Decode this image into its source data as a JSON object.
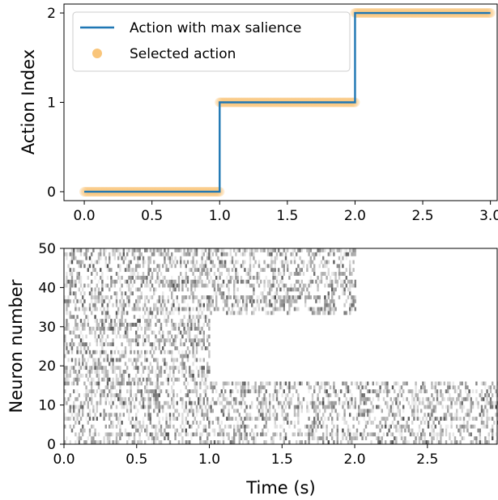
{
  "chart_data": [
    {
      "type": "line",
      "ylabel": "Action Index",
      "xlim": [
        -0.15,
        3.05
      ],
      "ylim": [
        -0.1,
        2.1
      ],
      "xticks": [
        "0.0",
        "0.5",
        "1.0",
        "1.5",
        "2.0",
        "2.5",
        "3.0"
      ],
      "xtick_values": [
        0,
        0.5,
        1,
        1.5,
        2,
        2.5,
        3
      ],
      "yticks": [
        "0",
        "1",
        "2"
      ],
      "ytick_values": [
        0,
        1,
        2
      ],
      "legend_position": "top-left",
      "series": [
        {
          "name": "Action with max salience",
          "kind": "step-line",
          "color": "#1f77b4",
          "x": [
            0,
            1,
            1,
            2,
            2,
            3
          ],
          "y": [
            0,
            0,
            1,
            1,
            2,
            2
          ]
        },
        {
          "name": "Selected action",
          "kind": "scatter",
          "color": "#f9c57a",
          "segments": [
            {
              "x_start": 0.0,
              "x_end": 1.0,
              "y": 0
            },
            {
              "x_start": 1.0,
              "x_end": 2.0,
              "y": 1
            },
            {
              "x_start": 2.0,
              "x_end": 3.0,
              "y": 2
            }
          ]
        }
      ]
    },
    {
      "type": "heatmap",
      "subtype": "raster",
      "xlabel": "Time (s)",
      "ylabel": "Neuron number",
      "xlim": [
        0,
        2.98
      ],
      "ylim": [
        0,
        50
      ],
      "xticks": [
        "0.0",
        "0.5",
        "1.0",
        "1.5",
        "2.0",
        "2.5"
      ],
      "xtick_values": [
        0,
        0.5,
        1,
        1.5,
        2,
        2.5
      ],
      "yticks": [
        "0",
        "10",
        "20",
        "30",
        "40",
        "50"
      ],
      "ytick_values": [
        0,
        10,
        20,
        30,
        40,
        50
      ],
      "neuron_count": 50,
      "cmap": "gray_r",
      "population_density": [
        {
          "neurons": [
            0,
            16
          ],
          "t0": 0.0,
          "t1": 2.98,
          "level": "high"
        },
        {
          "neurons": [
            16,
            33
          ],
          "t0": 0.0,
          "t1": 1.0,
          "level": "high"
        },
        {
          "neurons": [
            16,
            33
          ],
          "t0": 1.0,
          "t1": 2.98,
          "level": "suppressed"
        },
        {
          "neurons": [
            33,
            50
          ],
          "t0": 0.0,
          "t1": 2.0,
          "level": "high"
        },
        {
          "neurons": [
            33,
            50
          ],
          "t0": 2.0,
          "t1": 2.98,
          "level": "suppressed"
        }
      ]
    }
  ]
}
